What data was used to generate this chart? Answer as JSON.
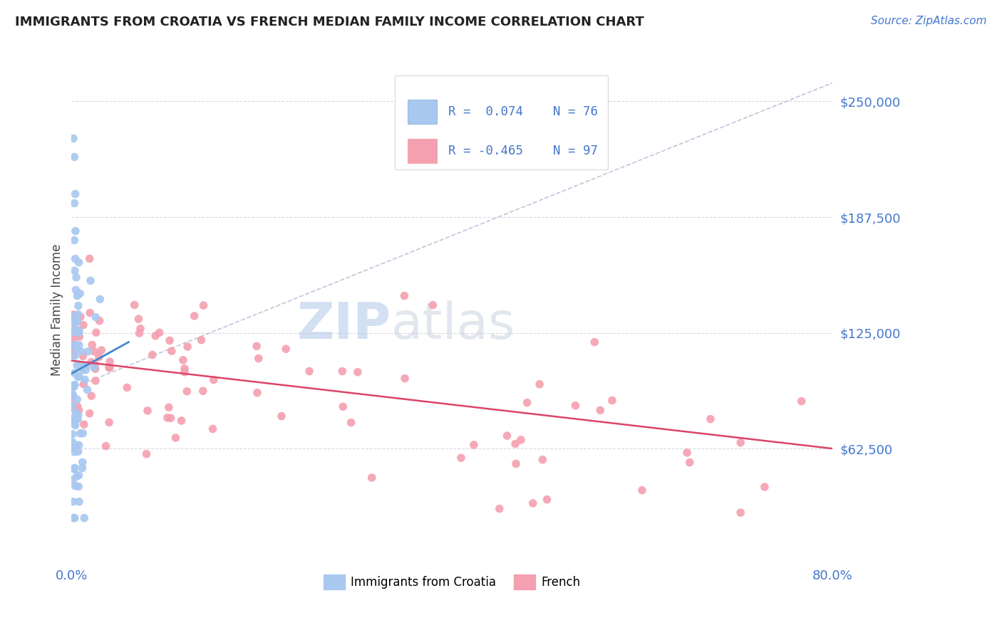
{
  "title": "IMMIGRANTS FROM CROATIA VS FRENCH MEDIAN FAMILY INCOME CORRELATION CHART",
  "source": "Source: ZipAtlas.com",
  "ylabel": "Median Family Income",
  "xlim": [
    0.0,
    0.8
  ],
  "ylim": [
    0,
    275000
  ],
  "yticks": [
    62500,
    125000,
    187500,
    250000
  ],
  "ytick_labels": [
    "$62,500",
    "$125,000",
    "$187,500",
    "$250,000"
  ],
  "xtick_left_label": "0.0%",
  "xtick_right_label": "80.0%",
  "scatter_color_1": "#a8c8f0",
  "scatter_color_2": "#f4a0b0",
  "trend_color_1": "#4488cc",
  "trend_color_2": "#dd4466",
  "dashed_color": "#aaaacc",
  "background_color": "#ffffff",
  "grid_color": "#ccccdd",
  "tick_label_color": "#4477cc",
  "title_color": "#222222",
  "source_color": "#4477cc",
  "legend_box_color": "#dddddd",
  "ylabel_color": "#444444",
  "legend_text_color": "#4477cc",
  "watermark_zip_color": "#b0c8e8",
  "watermark_atlas_color": "#c0c8d8",
  "croatia_trend_x": [
    0.0,
    0.06
  ],
  "croatia_trend_y": [
    103000,
    120000
  ],
  "french_trend_x": [
    0.0,
    0.8
  ],
  "french_trend_y": [
    110000,
    62500
  ],
  "dashed_line_x": [
    0.0,
    0.8
  ],
  "dashed_line_y": [
    95000,
    260000
  ]
}
